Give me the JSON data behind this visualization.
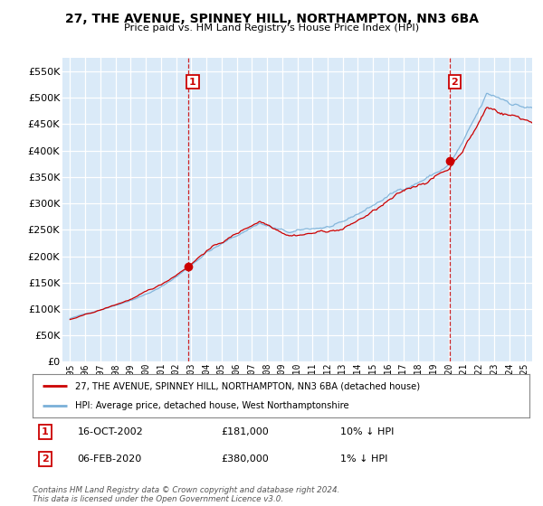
{
  "title": "27, THE AVENUE, SPINNEY HILL, NORTHAMPTON, NN3 6BA",
  "subtitle": "Price paid vs. HM Land Registry's House Price Index (HPI)",
  "hpi_label": "HPI: Average price, detached house, West Northamptonshire",
  "property_label": "27, THE AVENUE, SPINNEY HILL, NORTHAMPTON, NN3 6BA (detached house)",
  "price1": 181000,
  "price2": 380000,
  "sale1_year": 2002.8,
  "sale2_year": 2020.09,
  "ylim_min": 0,
  "ylim_max": 575000,
  "yticks": [
    0,
    50000,
    100000,
    150000,
    200000,
    250000,
    300000,
    350000,
    400000,
    450000,
    500000,
    550000
  ],
  "background_color": "#ffffff",
  "plot_bg_color": "#daeaf8",
  "grid_color": "#ffffff",
  "hpi_color": "#7ab0d8",
  "property_color": "#cc0000",
  "sale_vline_color": "#cc0000",
  "title_color": "#000000",
  "footnote": "Contains HM Land Registry data © Crown copyright and database right 2024.\nThis data is licensed under the Open Government Licence v3.0.",
  "xmin": 1994.5,
  "xmax": 2025.5,
  "label1_date": "16-OCT-2002",
  "label1_price": "£181,000",
  "label1_pct": "10% ↓ HPI",
  "label2_date": "06-FEB-2020",
  "label2_price": "£380,000",
  "label2_pct": "1% ↓ HPI"
}
